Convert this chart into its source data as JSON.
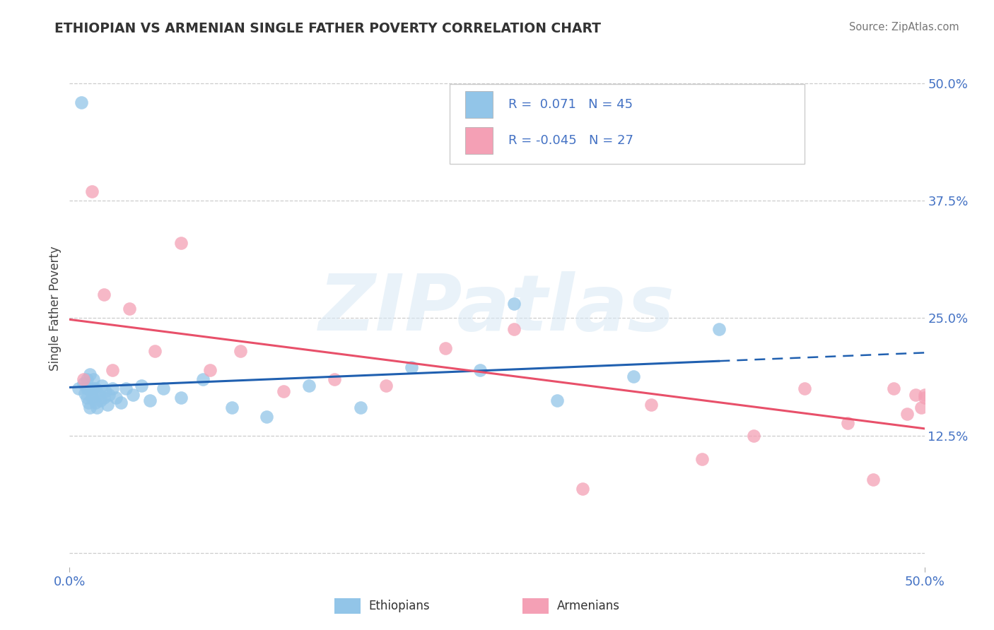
{
  "title": "ETHIOPIAN VS ARMENIAN SINGLE FATHER POVERTY CORRELATION CHART",
  "source": "Source: ZipAtlas.com",
  "ylabel": "Single Father Poverty",
  "xlim": [
    0.0,
    0.5
  ],
  "ylim": [
    -0.015,
    0.535
  ],
  "right_ytick_vals": [
    0.0,
    0.125,
    0.25,
    0.375,
    0.5
  ],
  "right_yticklabels": [
    "",
    "12.5%",
    "25.0%",
    "37.5%",
    "50.0%"
  ],
  "xtick_values": [
    0.0,
    0.5
  ],
  "xtick_labels": [
    "0.0%",
    "50.0%"
  ],
  "ethiopian_color": "#92C5E8",
  "armenian_color": "#F4A0B5",
  "ethiopian_line_color": "#2060B0",
  "armenian_line_color": "#E8506A",
  "watermark_text": "ZIPatlas",
  "bottom_legend_labels": [
    "Ethiopians",
    "Armenians"
  ],
  "legend_line1": "R =  0.071   N = 45",
  "legend_line2": "R = -0.045   N = 27",
  "ethiopian_x": [
    0.005,
    0.007,
    0.008,
    0.009,
    0.01,
    0.01,
    0.01,
    0.011,
    0.011,
    0.012,
    0.012,
    0.013,
    0.013,
    0.014,
    0.014,
    0.015,
    0.015,
    0.016,
    0.017,
    0.018,
    0.019,
    0.02,
    0.021,
    0.022,
    0.023,
    0.025,
    0.027,
    0.03,
    0.033,
    0.037,
    0.042,
    0.047,
    0.055,
    0.065,
    0.078,
    0.095,
    0.115,
    0.14,
    0.17,
    0.2,
    0.24,
    0.285,
    0.33,
    0.38,
    0.26
  ],
  "ethiopian_y": [
    0.175,
    0.48,
    0.18,
    0.17,
    0.175,
    0.185,
    0.165,
    0.16,
    0.175,
    0.19,
    0.155,
    0.17,
    0.165,
    0.175,
    0.185,
    0.16,
    0.175,
    0.155,
    0.168,
    0.162,
    0.178,
    0.165,
    0.172,
    0.158,
    0.168,
    0.175,
    0.165,
    0.16,
    0.175,
    0.168,
    0.178,
    0.162,
    0.175,
    0.165,
    0.185,
    0.155,
    0.145,
    0.178,
    0.155,
    0.198,
    0.195,
    0.162,
    0.188,
    0.238,
    0.265
  ],
  "armenian_x": [
    0.008,
    0.013,
    0.02,
    0.025,
    0.035,
    0.05,
    0.065,
    0.082,
    0.1,
    0.125,
    0.155,
    0.185,
    0.22,
    0.26,
    0.3,
    0.34,
    0.37,
    0.4,
    0.43,
    0.455,
    0.47,
    0.482,
    0.49,
    0.495,
    0.498,
    0.5,
    0.5
  ],
  "armenian_y": [
    0.185,
    0.385,
    0.275,
    0.195,
    0.26,
    0.215,
    0.33,
    0.195,
    0.215,
    0.172,
    0.185,
    0.178,
    0.218,
    0.238,
    0.068,
    0.158,
    0.1,
    0.125,
    0.175,
    0.138,
    0.078,
    0.175,
    0.148,
    0.168,
    0.155,
    0.165,
    0.168
  ]
}
